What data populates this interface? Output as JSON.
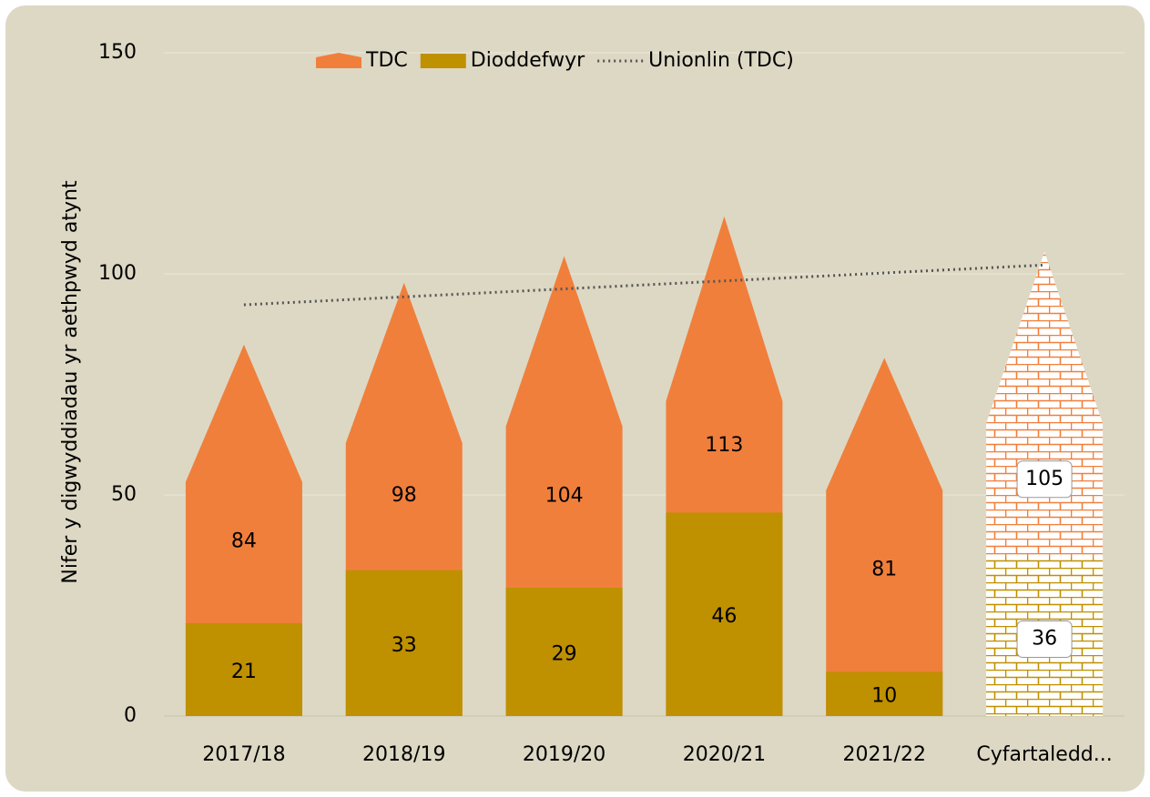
{
  "chart_data": {
    "type": "overlap-bar",
    "y_axis_label": "Nifer y digwyddiadau yr aethpwyd atynt",
    "categories": [
      "2017/18",
      "2018/19",
      "2019/20",
      "2020/21",
      "2021/22",
      "Cyfartaledd..."
    ],
    "series": [
      {
        "name": "TDC",
        "color": "#f07f3c",
        "shape": "pentagon",
        "values": [
          84,
          98,
          104,
          113,
          81,
          105
        ]
      },
      {
        "name": "Dioddefwyr",
        "color": "#bf9000",
        "shape": "rect",
        "values": [
          21,
          33,
          29,
          46,
          10,
          36
        ]
      }
    ],
    "trendline": {
      "name": "Unionlin (TDC)",
      "color": "#555555",
      "values": [
        93,
        94.8,
        96.6,
        98.4,
        100.2,
        102
      ]
    },
    "ylim": [
      0,
      150
    ],
    "yticks": [
      0,
      50,
      100,
      150
    ],
    "grid": true,
    "legend": "top"
  }
}
